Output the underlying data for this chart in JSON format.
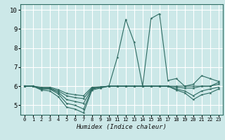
{
  "xlabel": "Humidex (Indice chaleur)",
  "bg_color": "#cce8e8",
  "grid_color": "#ffffff",
  "line_color": "#2d6b62",
  "xlim": [
    -0.5,
    23.5
  ],
  "ylim": [
    4.5,
    10.3
  ],
  "xticks": [
    0,
    1,
    2,
    3,
    4,
    5,
    6,
    7,
    8,
    9,
    10,
    11,
    12,
    13,
    14,
    15,
    16,
    17,
    18,
    19,
    20,
    21,
    22,
    23
  ],
  "yticks": [
    5,
    6,
    7,
    8,
    9,
    10
  ],
  "lines": [
    [
      6.0,
      6.0,
      5.8,
      5.75,
      5.45,
      4.9,
      4.8,
      4.6,
      5.8,
      5.9,
      6.0,
      7.5,
      9.5,
      8.3,
      6.0,
      9.55,
      9.8,
      6.3,
      6.4,
      6.0,
      6.1,
      6.55,
      6.4,
      6.25
    ],
    [
      6.0,
      6.0,
      5.85,
      5.85,
      5.6,
      5.1,
      5.0,
      4.8,
      5.85,
      5.95,
      6.0,
      6.0,
      6.0,
      6.0,
      6.0,
      6.0,
      6.0,
      6.0,
      6.0,
      6.0,
      6.0,
      6.0,
      6.0,
      6.2
    ],
    [
      6.0,
      6.0,
      5.88,
      5.88,
      5.68,
      5.3,
      5.2,
      5.1,
      5.88,
      5.95,
      6.0,
      6.0,
      6.0,
      6.0,
      6.0,
      6.0,
      6.0,
      6.0,
      5.95,
      5.9,
      5.9,
      6.0,
      6.0,
      6.1
    ],
    [
      6.0,
      6.0,
      5.9,
      5.9,
      5.75,
      5.5,
      5.4,
      5.35,
      5.9,
      5.95,
      6.0,
      6.0,
      6.0,
      6.0,
      6.0,
      6.0,
      6.0,
      6.0,
      5.85,
      5.75,
      5.5,
      5.75,
      5.85,
      5.95
    ],
    [
      6.0,
      6.0,
      5.95,
      5.95,
      5.82,
      5.62,
      5.55,
      5.5,
      5.95,
      5.97,
      6.0,
      6.0,
      6.0,
      6.0,
      6.0,
      6.0,
      6.0,
      6.0,
      5.8,
      5.65,
      5.3,
      5.55,
      5.65,
      5.85
    ]
  ]
}
